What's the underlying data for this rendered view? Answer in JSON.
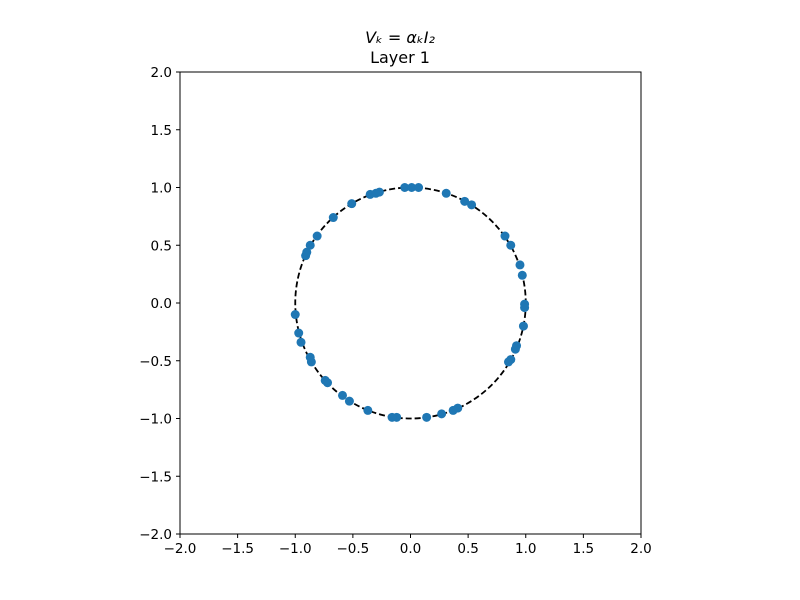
{
  "chart_data": {
    "type": "scatter",
    "title": "Vₖ = αₖI₂",
    "subtitle": "Layer 1",
    "xlabel": "",
    "ylabel": "",
    "xlim": [
      -2.0,
      2.0
    ],
    "ylim": [
      -2.0,
      2.0
    ],
    "xticks": [
      "−2.0",
      "−1.5",
      "−1.0",
      "−0.5",
      "0.0",
      "0.5",
      "1.0",
      "1.5",
      "2.0"
    ],
    "yticks": [
      "−2.0",
      "−1.5",
      "−1.0",
      "−0.5",
      "0.0",
      "0.5",
      "1.0",
      "1.5",
      "2.0"
    ],
    "grid": false,
    "reference_curve": {
      "type": "unit-circle",
      "radius": 1.0,
      "style": "dashed",
      "color": "#000000"
    },
    "marker_color": "#1f77b4",
    "points": [
      [
        -0.05,
        1.0
      ],
      [
        0.01,
        1.0
      ],
      [
        0.07,
        1.0
      ],
      [
        0.31,
        0.95
      ],
      [
        0.47,
        0.88
      ],
      [
        0.53,
        0.85
      ],
      [
        0.82,
        0.58
      ],
      [
        0.87,
        0.5
      ],
      [
        0.95,
        0.33
      ],
      [
        0.97,
        0.24
      ],
      [
        0.99,
        -0.01
      ],
      [
        0.99,
        -0.04
      ],
      [
        0.98,
        -0.2
      ],
      [
        0.92,
        -0.37
      ],
      [
        0.91,
        -0.4
      ],
      [
        0.87,
        -0.49
      ],
      [
        0.85,
        -0.51
      ],
      [
        0.41,
        -0.91
      ],
      [
        0.37,
        -0.93
      ],
      [
        0.27,
        -0.96
      ],
      [
        0.14,
        -0.99
      ],
      [
        -0.12,
        -0.99
      ],
      [
        -0.16,
        -0.99
      ],
      [
        -0.37,
        -0.93
      ],
      [
        -0.53,
        -0.85
      ],
      [
        -0.59,
        -0.8
      ],
      [
        -0.72,
        -0.69
      ],
      [
        -0.74,
        -0.67
      ],
      [
        -0.86,
        -0.51
      ],
      [
        -0.87,
        -0.47
      ],
      [
        -0.95,
        -0.34
      ],
      [
        -0.97,
        -0.26
      ],
      [
        -1.0,
        -0.1
      ],
      [
        -0.91,
        0.41
      ],
      [
        -0.9,
        0.44
      ],
      [
        -0.87,
        0.5
      ],
      [
        -0.81,
        0.58
      ],
      [
        -0.67,
        0.74
      ],
      [
        -0.51,
        0.86
      ],
      [
        -0.35,
        0.94
      ],
      [
        -0.3,
        0.95
      ],
      [
        -0.27,
        0.96
      ]
    ]
  }
}
